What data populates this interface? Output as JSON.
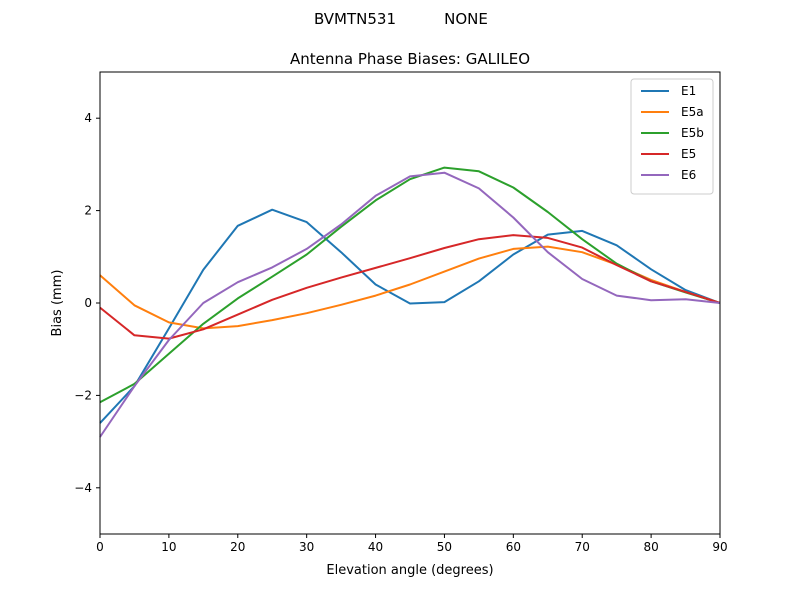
{
  "suptitle": {
    "station": "BVMTN531",
    "antenna": "NONE"
  },
  "chart_data": {
    "type": "line",
    "title": "Antenna Phase Biases: GALILEO",
    "xlabel": "Elevation angle (degrees)",
    "ylabel": "Bias (mm)",
    "xlim": [
      0,
      90
    ],
    "ylim": [
      -5,
      5
    ],
    "xticks": [
      0,
      10,
      20,
      30,
      40,
      50,
      60,
      70,
      80,
      90
    ],
    "yticks": [
      -4,
      -2,
      0,
      2,
      4
    ],
    "grid": false,
    "legend_position": "top-right",
    "x": [
      0,
      5,
      10,
      15,
      20,
      25,
      30,
      35,
      40,
      45,
      50,
      55,
      60,
      65,
      70,
      75,
      80,
      85,
      90
    ],
    "series": [
      {
        "name": "E1",
        "color": "#1f77b4",
        "values": [
          -2.6,
          -1.8,
          -0.55,
          0.72,
          1.67,
          2.02,
          1.75,
          1.1,
          0.4,
          -0.01,
          0.02,
          0.47,
          1.05,
          1.48,
          1.56,
          1.25,
          0.73,
          0.28,
          0.0
        ]
      },
      {
        "name": "E5a",
        "color": "#ff7f0e",
        "values": [
          0.6,
          -0.05,
          -0.42,
          -0.55,
          -0.5,
          -0.37,
          -0.22,
          -0.04,
          0.16,
          0.4,
          0.68,
          0.96,
          1.17,
          1.22,
          1.1,
          0.83,
          0.5,
          0.24,
          0.0
        ]
      },
      {
        "name": "E5b",
        "color": "#2ca02c",
        "values": [
          -2.15,
          -1.75,
          -1.1,
          -0.45,
          0.1,
          0.57,
          1.05,
          1.65,
          2.22,
          2.68,
          2.93,
          2.85,
          2.5,
          1.97,
          1.38,
          0.85,
          0.47,
          0.23,
          0.0
        ]
      },
      {
        "name": "E5",
        "color": "#d62728",
        "values": [
          -0.1,
          -0.7,
          -0.77,
          -0.57,
          -0.25,
          0.07,
          0.33,
          0.55,
          0.76,
          0.97,
          1.19,
          1.38,
          1.47,
          1.41,
          1.2,
          0.82,
          0.47,
          0.24,
          0.0
        ]
      },
      {
        "name": "E6",
        "color": "#9467bd",
        "values": [
          -2.9,
          -1.8,
          -0.8,
          0.0,
          0.45,
          0.77,
          1.17,
          1.7,
          2.32,
          2.74,
          2.82,
          2.48,
          1.85,
          1.1,
          0.52,
          0.16,
          0.06,
          0.08,
          0.0
        ]
      }
    ]
  }
}
